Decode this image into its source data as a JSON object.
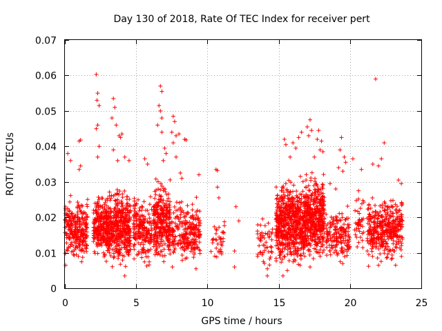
{
  "chart_data": {
    "type": "scatter",
    "title": "Day 130 of 2018, Rate Of TEC Index for receiver pert",
    "xlabel": "GPS time / hours",
    "ylabel": "ROTI / TECUs",
    "xlim": [
      0,
      25
    ],
    "ylim": [
      0,
      0.07
    ],
    "xticks": [
      0,
      5,
      10,
      15,
      20,
      25
    ],
    "xtick_labels": [
      "0",
      "5",
      "10",
      "15",
      "20",
      "25"
    ],
    "yticks": [
      0,
      0.01,
      0.02,
      0.03,
      0.04,
      0.05,
      0.06,
      0.07
    ],
    "ytick_labels": [
      "0",
      "0.01",
      "0.02",
      "0.03",
      "0.04",
      "0.05",
      "0.06",
      "0.07"
    ],
    "grid": true,
    "marker": "+",
    "color": "#ff0000",
    "series": [
      {
        "name": "ROTI",
        "clusters": [
          {
            "x": [
              0.0,
              1.6
            ],
            "y": [
              0.007,
              0.028
            ],
            "n": 260
          },
          {
            "x": [
              2.0,
              2.7
            ],
            "y": [
              0.007,
              0.03
            ],
            "n": 160
          },
          {
            "x": [
              2.7,
              4.6
            ],
            "y": [
              0.004,
              0.032
            ],
            "n": 520
          },
          {
            "x": [
              4.8,
              6.1
            ],
            "y": [
              0.005,
              0.03
            ],
            "n": 200
          },
          {
            "x": [
              6.2,
              7.4
            ],
            "y": [
              0.006,
              0.034
            ],
            "n": 300
          },
          {
            "x": [
              7.5,
              9.5
            ],
            "y": [
              0.005,
              0.028
            ],
            "n": 250
          },
          {
            "x": [
              10.2,
              11.2
            ],
            "y": [
              0.007,
              0.022
            ],
            "n": 35
          },
          {
            "x": [
              13.5,
              14.6
            ],
            "y": [
              0.004,
              0.024
            ],
            "n": 50
          },
          {
            "x": [
              14.8,
              16.8
            ],
            "y": [
              0.004,
              0.035
            ],
            "n": 620
          },
          {
            "x": [
              16.8,
              18.2
            ],
            "y": [
              0.007,
              0.035
            ],
            "n": 450
          },
          {
            "x": [
              18.3,
              20.0
            ],
            "y": [
              0.006,
              0.026
            ],
            "n": 170
          },
          {
            "x": [
              20.3,
              21.0
            ],
            "y": [
              0.009,
              0.03
            ],
            "n": 40
          },
          {
            "x": [
              21.2,
              22.3
            ],
            "y": [
              0.006,
              0.03
            ],
            "n": 170
          },
          {
            "x": [
              22.3,
              23.7
            ],
            "y": [
              0.006,
              0.03
            ],
            "n": 220
          }
        ],
        "points": [
          [
            2.2,
            0.0603
          ],
          [
            2.3,
            0.055
          ],
          [
            2.25,
            0.053
          ],
          [
            2.4,
            0.0515
          ],
          [
            2.3,
            0.046
          ],
          [
            2.2,
            0.045
          ],
          [
            2.4,
            0.04
          ],
          [
            2.3,
            0.037
          ],
          [
            3.4,
            0.0535
          ],
          [
            3.5,
            0.051
          ],
          [
            3.3,
            0.048
          ],
          [
            3.6,
            0.046
          ],
          [
            3.8,
            0.043
          ],
          [
            3.9,
            0.0425
          ],
          [
            4.0,
            0.0435
          ],
          [
            3.4,
            0.039
          ],
          [
            3.7,
            0.036
          ],
          [
            4.2,
            0.037
          ],
          [
            4.5,
            0.036
          ],
          [
            5.6,
            0.0365
          ],
          [
            5.8,
            0.035
          ],
          [
            6.7,
            0.057
          ],
          [
            6.8,
            0.0555
          ],
          [
            6.6,
            0.0515
          ],
          [
            6.7,
            0.05
          ],
          [
            6.8,
            0.048
          ],
          [
            6.5,
            0.046
          ],
          [
            6.8,
            0.044
          ],
          [
            7.0,
            0.0395
          ],
          [
            7.1,
            0.038
          ],
          [
            6.9,
            0.036
          ],
          [
            7.6,
            0.0485
          ],
          [
            7.7,
            0.047
          ],
          [
            7.5,
            0.044
          ],
          [
            7.8,
            0.043
          ],
          [
            8.0,
            0.0435
          ],
          [
            8.4,
            0.042
          ],
          [
            8.5,
            0.0418
          ],
          [
            7.6,
            0.041
          ],
          [
            7.8,
            0.037
          ],
          [
            8.1,
            0.0325
          ],
          [
            8.2,
            0.031
          ],
          [
            9.4,
            0.032
          ],
          [
            1.1,
            0.0418
          ],
          [
            1.0,
            0.0415
          ],
          [
            0.2,
            0.038
          ],
          [
            0.4,
            0.036
          ],
          [
            1.1,
            0.0345
          ],
          [
            1.0,
            0.0335
          ],
          [
            10.6,
            0.0335
          ],
          [
            10.7,
            0.0332
          ],
          [
            10.7,
            0.0285
          ],
          [
            10.8,
            0.0255
          ],
          [
            12.0,
            0.023
          ],
          [
            12.2,
            0.019
          ],
          [
            11.9,
            0.0105
          ],
          [
            11.9,
            0.006
          ],
          [
            10.8,
            0.0105
          ],
          [
            14.2,
            0.0035
          ],
          [
            14.2,
            0.0055
          ],
          [
            15.4,
            0.042
          ],
          [
            15.5,
            0.0405
          ],
          [
            16.0,
            0.041
          ],
          [
            16.2,
            0.0395
          ],
          [
            15.8,
            0.037
          ],
          [
            16.6,
            0.044
          ],
          [
            16.4,
            0.0425
          ],
          [
            17.2,
            0.0475
          ],
          [
            17.0,
            0.0455
          ],
          [
            17.3,
            0.0445
          ],
          [
            17.1,
            0.043
          ],
          [
            17.8,
            0.0445
          ],
          [
            17.7,
            0.042
          ],
          [
            18.0,
            0.0415
          ],
          [
            17.9,
            0.039
          ],
          [
            18.1,
            0.0385
          ],
          [
            17.5,
            0.037
          ],
          [
            19.4,
            0.0425
          ],
          [
            19.3,
            0.039
          ],
          [
            19.6,
            0.037
          ],
          [
            19.7,
            0.0355
          ],
          [
            19.2,
            0.034
          ],
          [
            19.5,
            0.033
          ],
          [
            20.2,
            0.0365
          ],
          [
            20.8,
            0.0335
          ],
          [
            20.6,
            0.0275
          ],
          [
            21.8,
            0.059
          ],
          [
            22.4,
            0.041
          ],
          [
            22.2,
            0.0365
          ],
          [
            22.0,
            0.0345
          ],
          [
            21.6,
            0.035
          ],
          [
            23.4,
            0.0305
          ],
          [
            23.6,
            0.0295
          ],
          [
            18.6,
            0.0295
          ],
          [
            19.0,
            0.028
          ],
          [
            0.05,
            0.0065
          ],
          [
            4.2,
            0.0035
          ],
          [
            9.2,
            0.0055
          ],
          [
            15.3,
            0.0035
          ],
          [
            15.6,
            0.005
          ],
          [
            16.5,
            0.0065
          ],
          [
            17.2,
            0.006
          ],
          [
            21.3,
            0.0062
          ],
          [
            22.0,
            0.0065
          ],
          [
            23.2,
            0.0065
          ]
        ]
      }
    ]
  }
}
